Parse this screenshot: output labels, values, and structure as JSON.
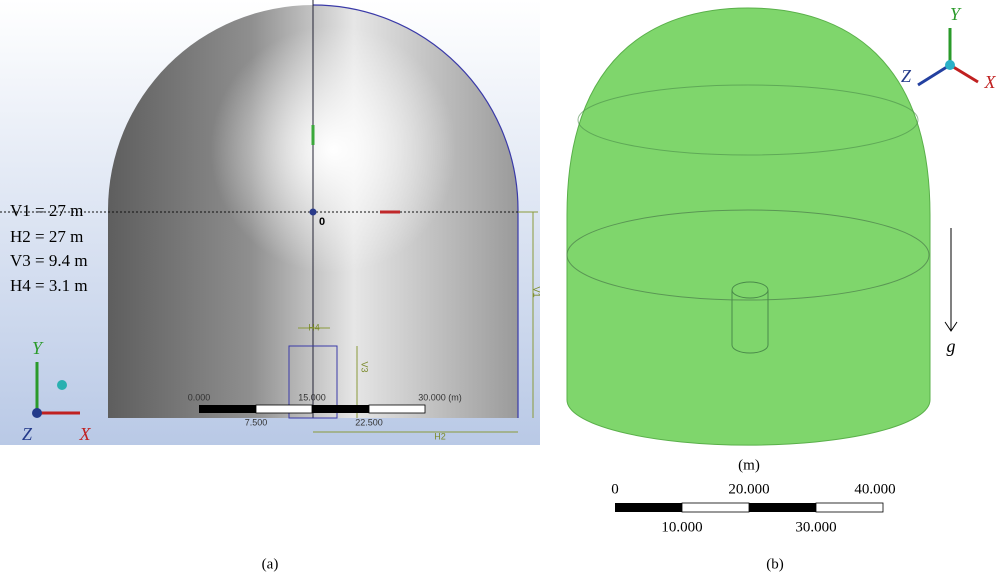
{
  "panel_a": {
    "dimensions": [
      "V1 = 27 m",
      "H2 = 27 m",
      "V3 = 9.4 m",
      "H4 = 3.1 m"
    ],
    "axes": {
      "y": "Y",
      "z": "Z",
      "x": "X"
    },
    "origin": "0",
    "dimension_tags": [
      "V1",
      "H4",
      "V3",
      "H2"
    ],
    "scale_top": [
      "0.000",
      "15.000",
      "30.000 (m)"
    ],
    "scale_bottom": [
      "7.500",
      "22.500"
    ],
    "caption": "(a)"
  },
  "panel_b": {
    "axes": {
      "y": "Y",
      "z": "Z",
      "x": "X"
    },
    "gravity": "g",
    "unit": "(m)",
    "scale_top": [
      "0",
      "20.000",
      "40.000"
    ],
    "scale_bottom": [
      "10.000",
      "30.000"
    ],
    "caption": "(b)"
  }
}
